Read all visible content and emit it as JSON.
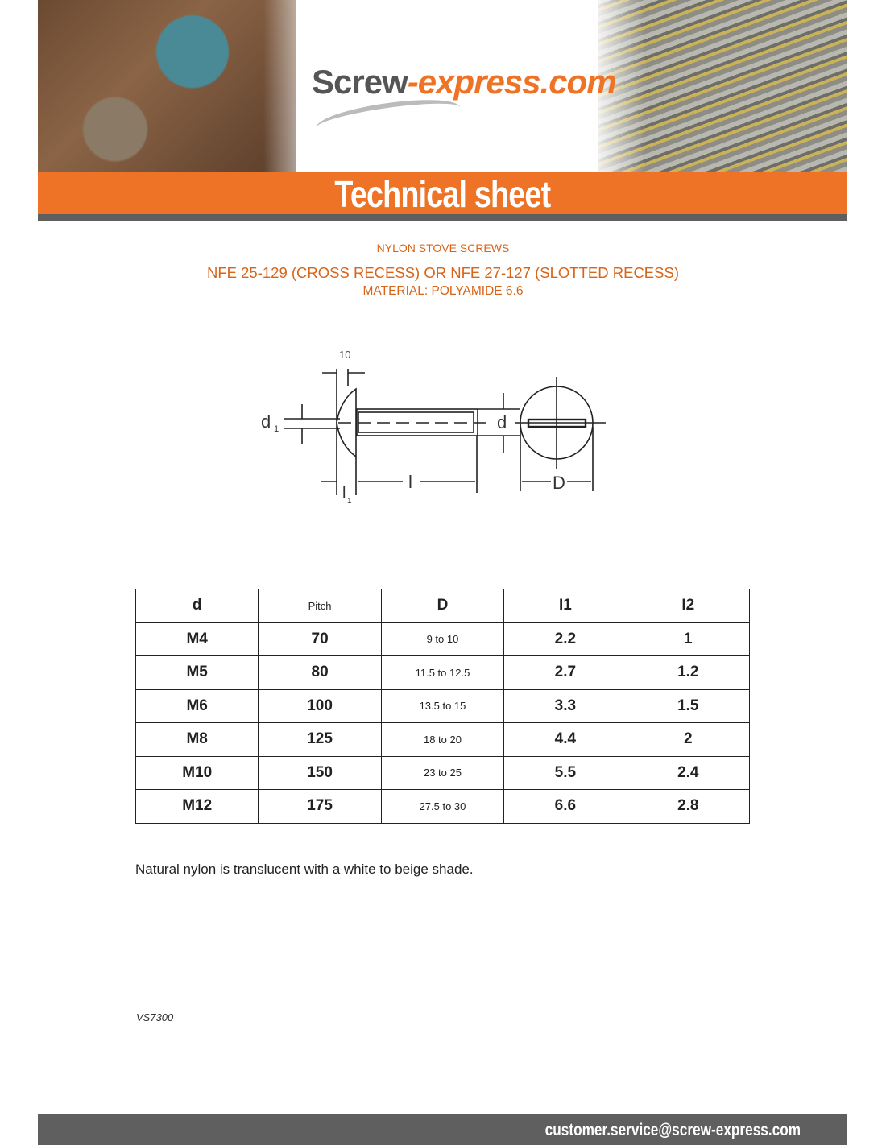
{
  "header": {
    "logo_main": "Screw",
    "logo_accent": "-express.com",
    "banner_title": "Technical sheet"
  },
  "product": {
    "category": "NYLON STOVE SCREWS",
    "standard": "NFE 25-129 (CROSS RECESS) OR NFE 27-127 (SLOTTED RECESS)",
    "material": "MATERIAL: POLYAMIDE 6.6"
  },
  "diagram": {
    "labels": {
      "top": "10",
      "d1": "d",
      "d1_sub": "1",
      "l": "l",
      "l1": "l",
      "l1_sub": "1",
      "d": "d",
      "D": "D"
    }
  },
  "table": {
    "headers": [
      "d",
      "Pitch",
      "D",
      "I1",
      "I2"
    ],
    "rows": [
      [
        "M4",
        "70",
        "9 to 10",
        "2.2",
        "1"
      ],
      [
        "M5",
        "80",
        "11.5 to 12.5",
        "2.7",
        "1.2"
      ],
      [
        "M6",
        "100",
        "13.5 to 15",
        "3.3",
        "1.5"
      ],
      [
        "M8",
        "125",
        "18 to 20",
        "4.4",
        "2"
      ],
      [
        "M10",
        "150",
        "23 to 25",
        "5.5",
        "2.4"
      ],
      [
        "M12",
        "175",
        "27.5 to 30",
        "6.6",
        "2.8"
      ]
    ]
  },
  "note": "Natural nylon is translucent with a white to beige shade.",
  "reference": "VS7300",
  "footer": {
    "email": "customer.service@screw-express.com"
  },
  "colors": {
    "accent": "#ee7326",
    "footer": "#5f5f5f"
  }
}
